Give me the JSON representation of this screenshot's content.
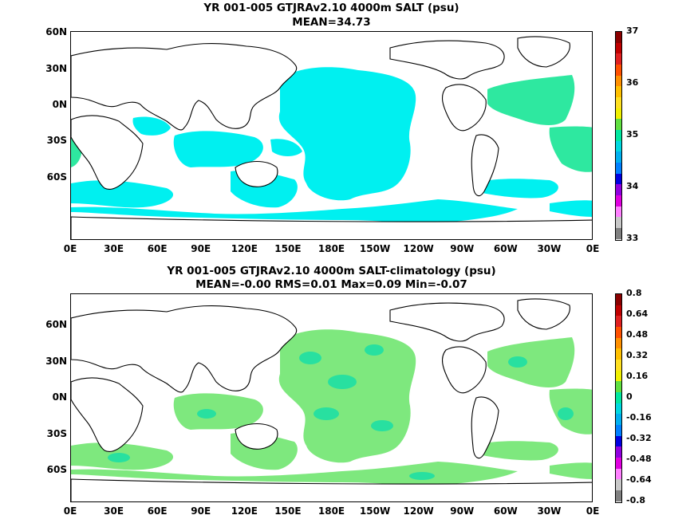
{
  "panel_top": {
    "title_line1": "YR 001-005 GTJRAv2.10 4000m SALT (psu)",
    "title_line2": "MEAN=34.73",
    "lat_labels": [
      "60N",
      "30N",
      "0N",
      "30S",
      "60S"
    ],
    "lon_labels": [
      "0E",
      "30E",
      "60E",
      "90E",
      "120E",
      "150E",
      "180E",
      "150W",
      "120W",
      "90W",
      "60W",
      "30W",
      "0E"
    ],
    "colorbar": {
      "labels": [
        "37",
        "36",
        "35",
        "34",
        "33"
      ],
      "colors": [
        "#8b0000",
        "#c00000",
        "#e02020",
        "#ff5000",
        "#ff9000",
        "#ffc000",
        "#ffe020",
        "#f0f000",
        "#60e040",
        "#00e8a0",
        "#00d8e0",
        "#00b0f0",
        "#0080ff",
        "#0000e0",
        "#9000e0",
        "#e000e0",
        "#ff80ff",
        "#c8c8c8",
        "#808080"
      ]
    }
  },
  "panel_bottom": {
    "title_line1": "YR 001-005 GTJRAv2.10 4000m SALT-climatology (psu)",
    "title_line2": "MEAN=-0.00   RMS=0.01   Max=0.09   Min=-0.07",
    "lat_labels": [
      "60N",
      "30N",
      "0N",
      "30S",
      "60S"
    ],
    "lon_labels": [
      "0E",
      "30E",
      "60E",
      "90E",
      "120E",
      "150E",
      "180E",
      "150W",
      "120W",
      "90W",
      "60W",
      "30W",
      "0E"
    ],
    "colorbar": {
      "labels": [
        "0.8",
        "0.64",
        "0.48",
        "0.32",
        "0.16",
        "0",
        "-0.16",
        "-0.32",
        "-0.48",
        "-0.64",
        "-0.8"
      ],
      "colors": [
        "#8b0000",
        "#c00000",
        "#e02020",
        "#ff5000",
        "#ff9000",
        "#ffc000",
        "#ffe020",
        "#f0f000",
        "#60e040",
        "#00e8a0",
        "#00d8e0",
        "#00b0f0",
        "#0080ff",
        "#0000e0",
        "#9000e0",
        "#e000e0",
        "#ff80ff",
        "#c8c8c8",
        "#808080"
      ]
    }
  },
  "colors": {
    "top_field": "#00f0f0",
    "top_field_alt": "#2ee8a0",
    "bottom_field_green": "#7ee87e",
    "bottom_field_teal": "#28e0a0"
  }
}
